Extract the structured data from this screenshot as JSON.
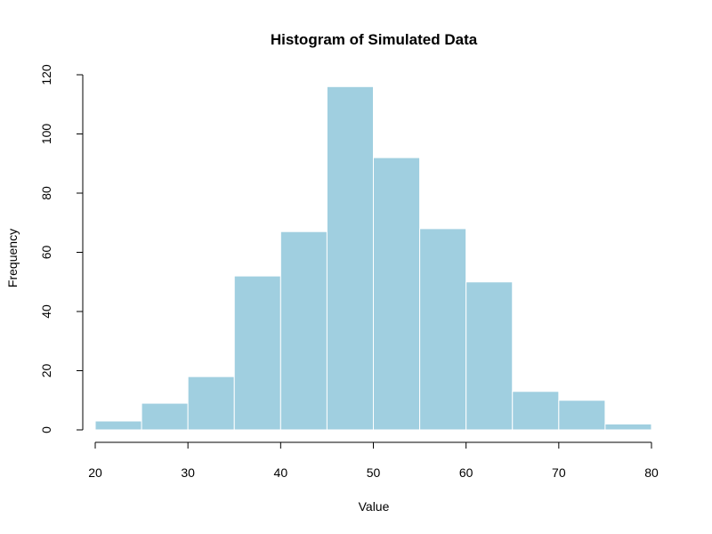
{
  "chart_data": {
    "type": "bar",
    "subtype": "histogram",
    "title": "Histogram of Simulated Data",
    "xlabel": "Value",
    "ylabel": "Frequency",
    "bin_edges": [
      20,
      25,
      30,
      35,
      40,
      45,
      50,
      55,
      60,
      65,
      70,
      75,
      80
    ],
    "values": [
      3,
      9,
      18,
      52,
      67,
      116,
      92,
      68,
      50,
      13,
      10,
      2
    ],
    "xlim": [
      20,
      80
    ],
    "ylim": [
      0,
      120
    ],
    "xticks": [
      20,
      30,
      40,
      50,
      60,
      70,
      80
    ],
    "yticks": [
      0,
      20,
      40,
      60,
      80,
      100,
      120
    ],
    "grid": false,
    "bar_color": "#a0cfe0",
    "bar_edge_color": "#ffffff"
  }
}
